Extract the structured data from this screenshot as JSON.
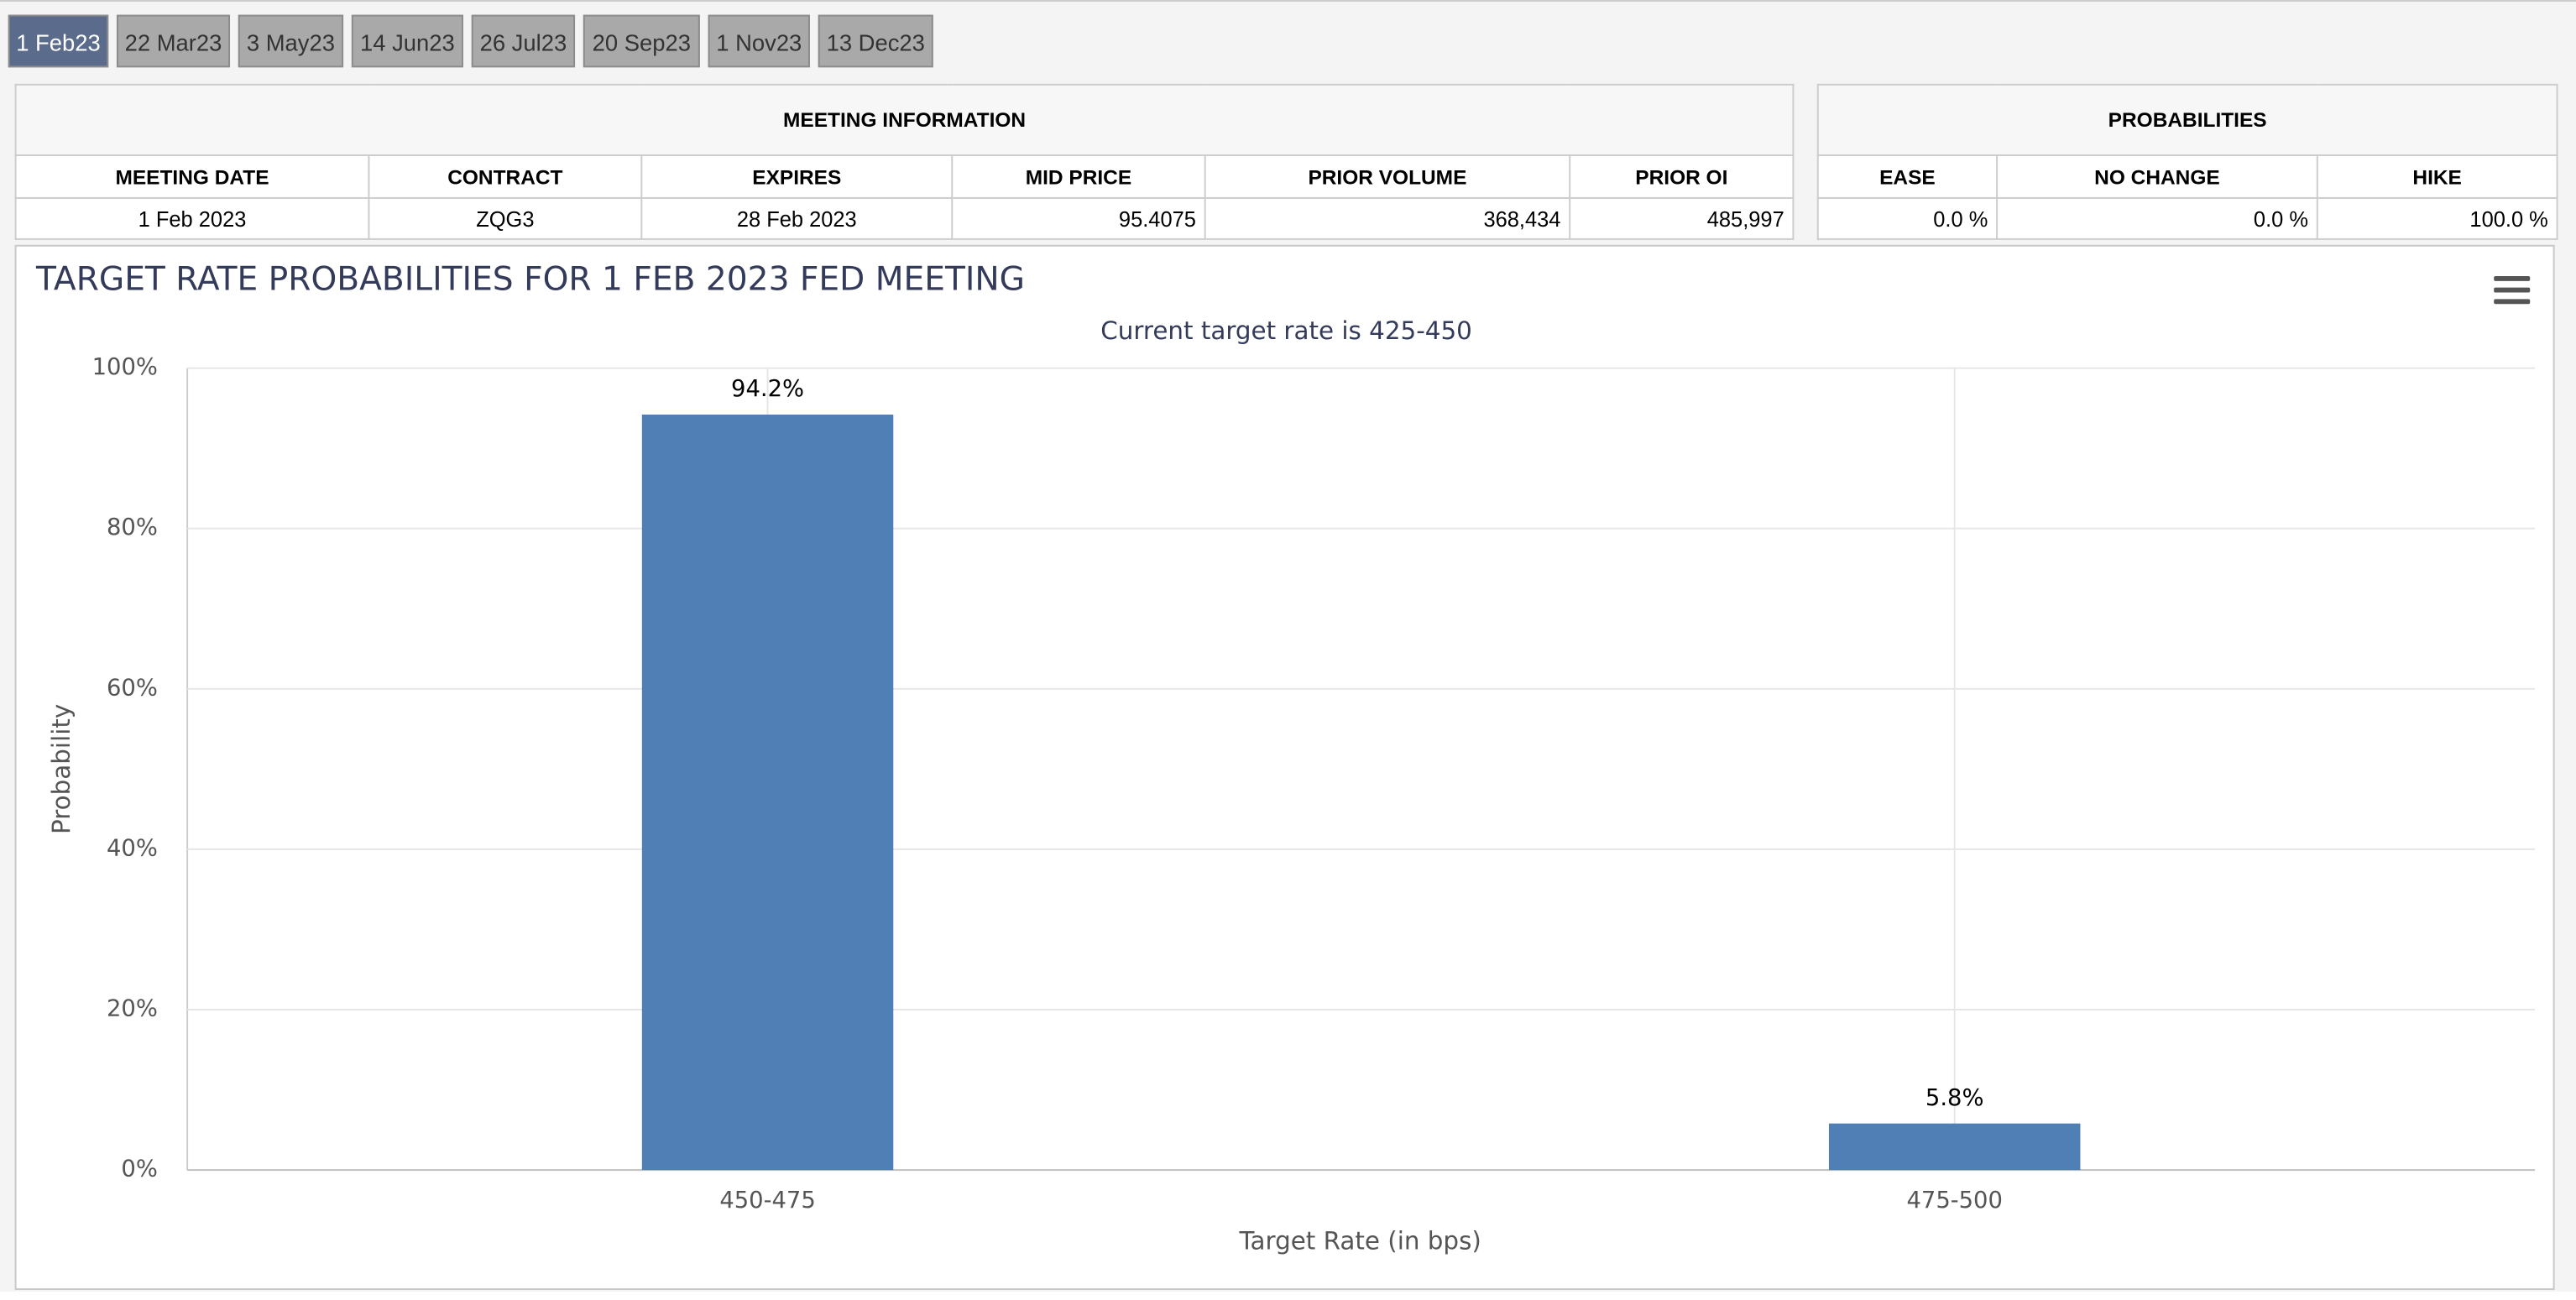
{
  "tabs": [
    "1 Feb23",
    "22 Mar23",
    "3 May23",
    "14 Jun23",
    "26 Jul23",
    "20 Sep23",
    "1 Nov23",
    "13 Dec23"
  ],
  "meeting_information": {
    "title": "MEETING INFORMATION",
    "headers": [
      "MEETING DATE",
      "CONTRACT",
      "EXPIRES",
      "MID PRICE",
      "PRIOR VOLUME",
      "PRIOR OI"
    ],
    "row": [
      "1 Feb 2023",
      "ZQG3",
      "28 Feb 2023",
      "95.4075",
      "368,434",
      "485,997"
    ]
  },
  "probabilities": {
    "title": "PROBABILITIES",
    "headers": [
      "EASE",
      "NO CHANGE",
      "HIKE"
    ],
    "row": [
      "0.0 %",
      "0.0 %",
      "100.0 %"
    ]
  },
  "chart_data": {
    "type": "bar",
    "title": "TARGET RATE PROBABILITIES FOR 1 FEB 2023 FED MEETING",
    "subtitle": "Current target rate is 425-450",
    "categories": [
      "450-475",
      "475-500"
    ],
    "values": [
      94.2,
      5.8
    ],
    "value_labels": [
      "94.2%",
      "5.8%"
    ],
    "color": "#4f7fb4",
    "xlabel": "Target Rate (in bps)",
    "ylabel": "Probability",
    "ylim": [
      0,
      100
    ],
    "yticks": [
      {
        "value": 0,
        "label": "0%"
      },
      {
        "value": 20,
        "label": "20%"
      },
      {
        "value": 40,
        "label": "40%"
      },
      {
        "value": 60,
        "label": "60%"
      },
      {
        "value": 80,
        "label": "80%"
      },
      {
        "value": 100,
        "label": "100%"
      }
    ],
    "grid": true
  }
}
